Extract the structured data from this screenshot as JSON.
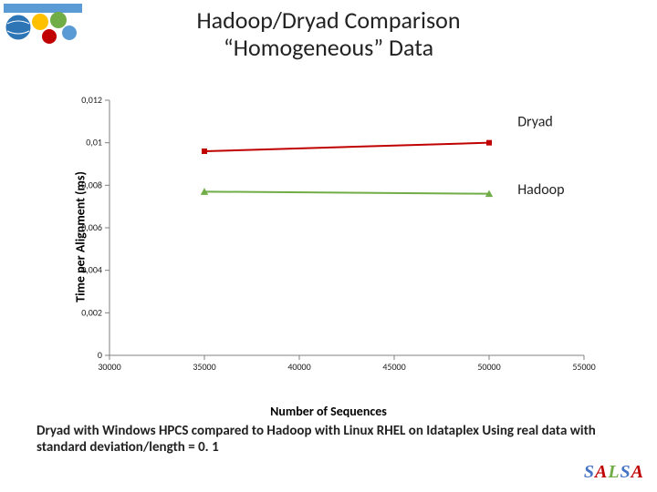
{
  "title_line1": "Hadoop/Dryad Comparison",
  "title_line2": "“Homogeneous” Data",
  "chart": {
    "type": "line",
    "ylabel": "Time per Alignment (ms)",
    "xlabel": "Number of Sequences",
    "xlim": [
      30000,
      55000
    ],
    "ylim": [
      0,
      0.012
    ],
    "xticks": [
      30000,
      35000,
      40000,
      45000,
      50000,
      55000
    ],
    "xtick_labels": [
      "30000",
      "35000",
      "40000",
      "45000",
      "50000",
      "55000"
    ],
    "yticks": [
      0,
      0.002,
      0.004,
      0.006,
      0.008,
      0.01,
      0.012
    ],
    "ytick_labels": [
      "0",
      "0,002",
      "0,004",
      "0,006",
      "0,008",
      "0,01",
      "0,012"
    ],
    "tick_fontsize": 10,
    "label_fontsize": 14,
    "background_color": "#ffffff",
    "axis_color": "#808080",
    "grid_color": "#bfbfbf",
    "tickmark_len": 5,
    "series": [
      {
        "name": "Dryad",
        "color": "#c00000",
        "marker": "square",
        "marker_size": 6,
        "line_width": 2,
        "points": [
          {
            "x": 35000,
            "y": 0.0096
          },
          {
            "x": 50000,
            "y": 0.01
          }
        ],
        "label_pos": {
          "x": 51500,
          "y": 0.011
        }
      },
      {
        "name": "Hadoop",
        "color": "#70ad47",
        "marker": "triangle",
        "marker_size": 7,
        "line_width": 2,
        "points": [
          {
            "x": 35000,
            "y": 0.0077
          },
          {
            "x": 50000,
            "y": 0.0076
          }
        ],
        "label_pos": {
          "x": 51500,
          "y": 0.0078
        }
      }
    ]
  },
  "caption": "Dryad with Windows HPCS compared to Hadoop with Linux RHEL on Idataplex Using real data with standard deviation/length = 0. 1",
  "brand": {
    "letters": [
      "S",
      "A",
      "L",
      "S",
      "A"
    ],
    "colors": [
      "#4472c4",
      "#c00000",
      "#70ad47",
      "#4472c4",
      "#c00000"
    ]
  },
  "logo": {
    "bar_color": "#5b9bd5",
    "globe_color": "#2e75b6",
    "accent1": "#ffc000",
    "accent2": "#70ad47"
  }
}
